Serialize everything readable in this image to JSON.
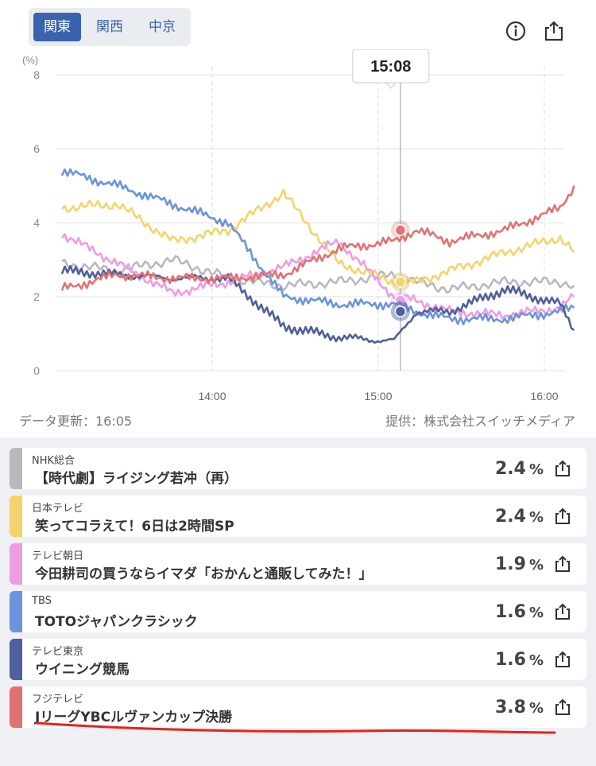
{
  "tabs": [
    {
      "label": "関東",
      "active": true
    },
    {
      "label": "関西",
      "active": false
    },
    {
      "label": "中京",
      "active": false
    }
  ],
  "header_icons": [
    "info-icon",
    "share-icon"
  ],
  "chart_data": {
    "type": "line",
    "ylabel": "(%)",
    "ylim": [
      0,
      8
    ],
    "yticks": [
      "0",
      "2",
      "4",
      "6",
      "8"
    ],
    "xticks": [
      "14:00",
      "15:00",
      "16:00"
    ],
    "x": [
      "13:00",
      "13:20",
      "13:40",
      "14:00",
      "14:20",
      "14:40",
      "15:00",
      "15:08",
      "15:20",
      "15:40",
      "16:00",
      "16:05"
    ],
    "series": [
      {
        "name": "NHK総合",
        "color": "#b7b9bf",
        "values": [
          2.9,
          2.7,
          3.0,
          2.5,
          2.3,
          2.4,
          2.6,
          2.4,
          2.2,
          2.4,
          2.4,
          2.3
        ]
      },
      {
        "name": "日本テレビ",
        "color": "#f6d36a",
        "values": [
          4.4,
          4.5,
          3.5,
          3.8,
          4.8,
          2.9,
          2.4,
          2.4,
          2.7,
          3.2,
          3.6,
          3.2
        ]
      },
      {
        "name": "テレビ朝日",
        "color": "#ee9de0",
        "values": [
          3.7,
          2.9,
          2.1,
          2.4,
          2.8,
          3.5,
          2.0,
          1.9,
          1.6,
          1.5,
          1.7,
          2.0
        ]
      },
      {
        "name": "TBS",
        "color": "#6b93de",
        "values": [
          5.4,
          5.0,
          4.5,
          4.0,
          2.0,
          1.8,
          1.8,
          1.6,
          1.4,
          1.4,
          1.6,
          1.7
        ]
      },
      {
        "name": "テレビ東京",
        "color": "#4f5f9f",
        "values": [
          2.7,
          2.6,
          2.5,
          2.5,
          1.2,
          0.9,
          0.8,
          1.6,
          1.6,
          2.2,
          1.8,
          1.1
        ]
      },
      {
        "name": "フジテレビ",
        "color": "#e27272",
        "values": [
          2.2,
          2.6,
          2.5,
          2.5,
          2.6,
          3.3,
          3.5,
          3.8,
          3.5,
          3.8,
          4.4,
          5.0
        ]
      }
    ],
    "cursor": {
      "label": "15:08",
      "x": "15:08"
    },
    "grid": true
  },
  "footer": {
    "updated": "データ更新：16:05",
    "source": "提供：株式会社スイッチメディア"
  },
  "rows": [
    {
      "channel": "NHK総合",
      "program": "【時代劇】ライジング若冲（再）",
      "rate": "2.4",
      "unit": "%",
      "color": "#b7b9bf"
    },
    {
      "channel": "日本テレビ",
      "program": "笑ってコラえて！6日は2時間SP",
      "rate": "2.4",
      "unit": "%",
      "color": "#f6d36a"
    },
    {
      "channel": "テレビ朝日",
      "program": "今田耕司の買うならイマダ「おかんと通販してみた！」",
      "rate": "1.9",
      "unit": "%",
      "color": "#ee9de0"
    },
    {
      "channel": "TBS",
      "program": "TOTOジャパンクラシック",
      "rate": "1.6",
      "unit": "%",
      "color": "#6b93de"
    },
    {
      "channel": "テレビ東京",
      "program": "ウイニング競馬",
      "rate": "1.6",
      "unit": "%",
      "color": "#4f5f9f"
    },
    {
      "channel": "フジテレビ",
      "program": "JリーグYBCルヴァンカップ決勝",
      "rate": "3.8",
      "unit": "%",
      "color": "#e27272"
    }
  ]
}
